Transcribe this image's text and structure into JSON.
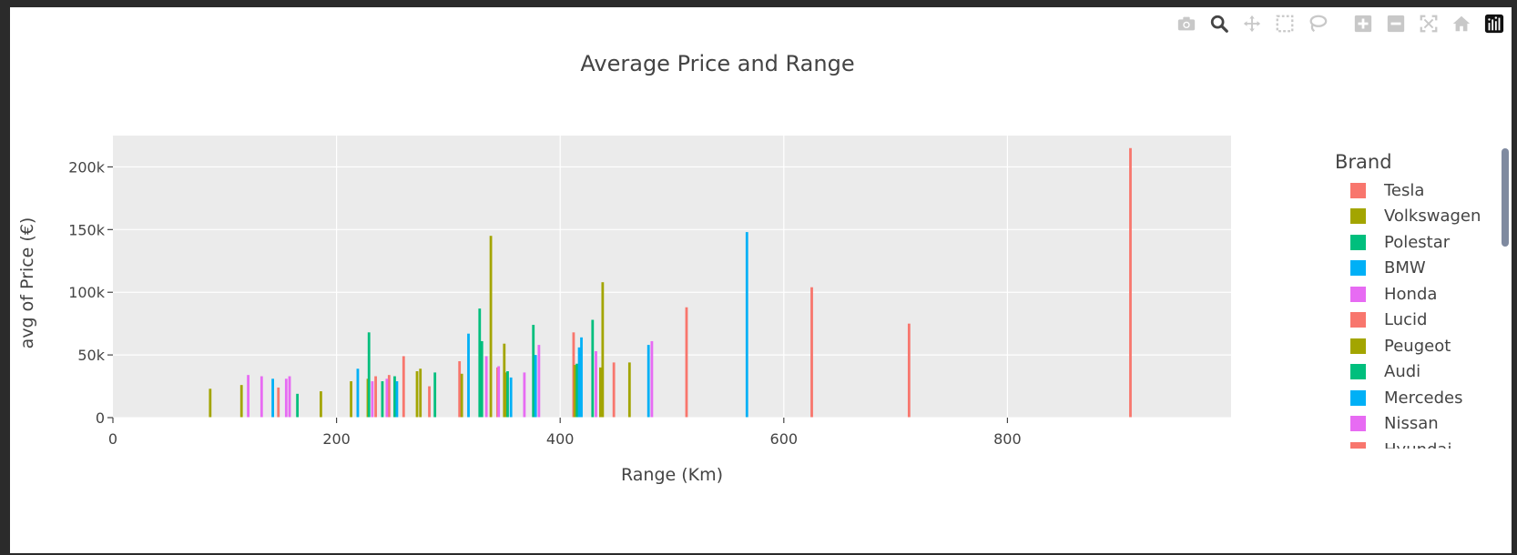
{
  "toolbar": {
    "icons": [
      "camera-icon",
      "zoom-icon",
      "pan-icon",
      "box-select-icon",
      "lasso-select-icon",
      "zoom-in-icon",
      "zoom-out-icon",
      "autoscale-icon",
      "reset-axes-icon",
      "plotly-logo-icon"
    ]
  },
  "chart_data": {
    "type": "bar",
    "title": "Average Price and Range",
    "xlabel": "Range (Km)",
    "ylabel": "avg of Price (€)",
    "xlim": [
      0,
      1000
    ],
    "ylim": [
      0,
      225000
    ],
    "xticks": [
      0,
      200,
      400,
      600,
      800
    ],
    "xtick_labels": [
      "0",
      "200",
      "400",
      "600",
      "800"
    ],
    "yticks": [
      0,
      50000,
      100000,
      150000,
      200000
    ],
    "ytick_labels": [
      "0",
      "50k",
      "100k",
      "150k",
      "200k"
    ],
    "grid": true,
    "background": "#ebebeb",
    "legend_title": "Brand",
    "legend_position": "right",
    "series": [
      {
        "name": "Tesla",
        "color": "#F8766D",
        "points": [
          [
            910,
            215000
          ],
          [
            712,
            75000
          ],
          [
            625,
            104000
          ],
          [
            513,
            88000
          ],
          [
            448,
            44000
          ],
          [
            412,
            68000
          ],
          [
            344,
            40000
          ],
          [
            310,
            45000
          ],
          [
            283,
            25000
          ],
          [
            260,
            49000
          ],
          [
            247,
            34000
          ],
          [
            235,
            33000
          ],
          [
            148,
            24000
          ]
        ]
      },
      {
        "name": "Volkswagen",
        "color": "#A3A500",
        "points": [
          [
            87,
            23000
          ],
          [
            115,
            26000
          ],
          [
            186,
            21000
          ],
          [
            213,
            29000
          ],
          [
            228,
            31000
          ],
          [
            272,
            37000
          ],
          [
            275,
            39000
          ],
          [
            312,
            35000
          ],
          [
            338,
            145000
          ],
          [
            350,
            59000
          ],
          [
            352,
            36000
          ],
          [
            413,
            42000
          ],
          [
            436,
            40000
          ],
          [
            438,
            108000
          ],
          [
            462,
            44000
          ]
        ]
      },
      {
        "name": "Polestar",
        "color": "#00BF7D",
        "points": [
          [
            165,
            19000
          ],
          [
            229,
            68000
          ],
          [
            241,
            29000
          ],
          [
            252,
            33000
          ],
          [
            288,
            36000
          ],
          [
            328,
            87000
          ],
          [
            330,
            61000
          ],
          [
            353,
            37000
          ],
          [
            376,
            74000
          ],
          [
            415,
            43000
          ],
          [
            429,
            78000
          ]
        ]
      },
      {
        "name": "BMW",
        "color": "#00B0F6",
        "points": [
          [
            143,
            31000
          ],
          [
            219,
            39000
          ],
          [
            254,
            29000
          ],
          [
            318,
            67000
          ],
          [
            356,
            32000
          ],
          [
            378,
            50000
          ],
          [
            417,
            56000
          ],
          [
            419,
            64000
          ],
          [
            479,
            58000
          ],
          [
            567,
            148000
          ]
        ]
      },
      {
        "name": "Honda",
        "color": "#E76BF3",
        "points": [
          [
            121,
            34000
          ],
          [
            133,
            33000
          ],
          [
            155,
            31000
          ],
          [
            158,
            33000
          ],
          [
            232,
            29000
          ],
          [
            245,
            31000
          ],
          [
            334,
            49000
          ],
          [
            345,
            41000
          ],
          [
            368,
            36000
          ],
          [
            381,
            58000
          ],
          [
            432,
            53000
          ],
          [
            482,
            61000
          ]
        ]
      },
      {
        "name": "Lucid",
        "color": "#F8766D",
        "points": []
      },
      {
        "name": "Peugeot",
        "color": "#A3A500",
        "points": []
      },
      {
        "name": "Audi",
        "color": "#00BF7D",
        "points": []
      },
      {
        "name": "Mercedes",
        "color": "#00B0F6",
        "points": []
      },
      {
        "name": "Nissan",
        "color": "#E76BF3",
        "points": []
      },
      {
        "name": "Hyundai",
        "color": "#F8766D",
        "points": []
      }
    ]
  }
}
